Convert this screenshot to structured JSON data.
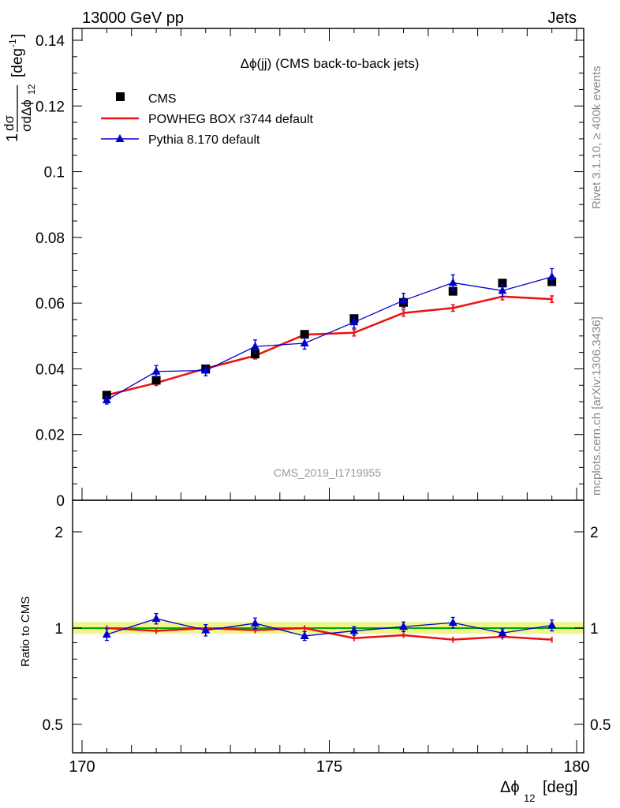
{
  "header": {
    "left": "13000 GeV pp",
    "right": "Jets"
  },
  "side_labels": {
    "rivet": "Rivet 3.1.10, ≥ 400k events",
    "mcplots": "mcplots.cern.ch [arXiv:1306.3436]"
  },
  "watermark": "CMS_2019_I1719955",
  "colors": {
    "cms": "#000000",
    "powheg": "#ee1111",
    "pythia": "#0000cc",
    "band": "#eef58a",
    "ref_line": "#00aa00"
  },
  "chart_data": [
    {
      "type": "scatter",
      "title": "Δϕ(jj) (CMS back-to-back jets)",
      "ylabel_parts": {
        "prefix": "1",
        "num": "dσ",
        "den": "σdΔϕ",
        "den_sub": "12",
        "unit": "[deg",
        "unit_sup": "-1",
        "unit_close": "]"
      },
      "xlim": [
        170,
        180
      ],
      "ylim": [
        0,
        0.14
      ],
      "yticks": [
        "0",
        "0.02",
        "0.04",
        "0.06",
        "0.08",
        "0.1",
        "0.12",
        "0.14"
      ],
      "legend_position": "top-left",
      "x": [
        170.5,
        171.5,
        172.5,
        173.5,
        174.5,
        175.5,
        176.5,
        177.5,
        178.5,
        179.5
      ],
      "series": [
        {
          "name": "CMS",
          "marker": "square",
          "values": [
            0.032,
            0.0365,
            0.04,
            0.0445,
            0.0505,
            0.0553,
            0.0602,
            0.0636,
            0.0661,
            0.0665
          ]
        },
        {
          "name": "POWHEG BOX r3744 default",
          "marker": "line",
          "values": [
            0.032,
            0.0357,
            0.0401,
            0.044,
            0.0504,
            0.051,
            0.057,
            0.0585,
            0.062,
            0.0612
          ],
          "errors": [
            0.0008,
            0.0008,
            0.0008,
            0.001,
            0.001,
            0.001,
            0.001,
            0.001,
            0.001,
            0.001
          ]
        },
        {
          "name": "Pythia 8.170 default",
          "marker": "triangle",
          "values": [
            0.0305,
            0.0392,
            0.0395,
            0.0468,
            0.0478,
            0.0542,
            0.0608,
            0.0662,
            0.0638,
            0.068
          ],
          "errors": [
            0.0012,
            0.0018,
            0.0016,
            0.002,
            0.0018,
            0.0018,
            0.0022,
            0.0024,
            0.0018,
            0.0025
          ]
        }
      ]
    },
    {
      "type": "line",
      "ylabel": "Ratio to CMS",
      "xlabel_parts": {
        "main": "Δϕ",
        "sub": "12",
        "unit": "[deg]"
      },
      "xlim": [
        170,
        180
      ],
      "ylim": [
        0.4,
        2.3
      ],
      "xticks": [
        170,
        175,
        180
      ],
      "yticks": [
        "0.5",
        "1",
        "2"
      ],
      "x": [
        170.5,
        171.5,
        172.5,
        173.5,
        174.5,
        175.5,
        176.5,
        177.5,
        178.5,
        179.5
      ],
      "band": [
        0.96,
        1.045
      ],
      "series": [
        {
          "name": "POWHEG BOX r3744 default",
          "values": [
            1.0,
            0.98,
            1.0,
            0.985,
            1.0,
            0.93,
            0.95,
            0.92,
            0.94,
            0.92
          ],
          "errors": [
            0.02,
            0.02,
            0.02,
            0.02,
            0.02,
            0.02,
            0.02,
            0.02,
            0.02,
            0.02
          ]
        },
        {
          "name": "Pythia 8.170 default",
          "values": [
            0.955,
            1.07,
            0.985,
            1.035,
            0.945,
            0.98,
            1.01,
            1.04,
            0.965,
            1.02
          ],
          "errors": [
            0.04,
            0.04,
            0.04,
            0.04,
            0.03,
            0.03,
            0.035,
            0.04,
            0.03,
            0.04
          ]
        }
      ]
    }
  ]
}
